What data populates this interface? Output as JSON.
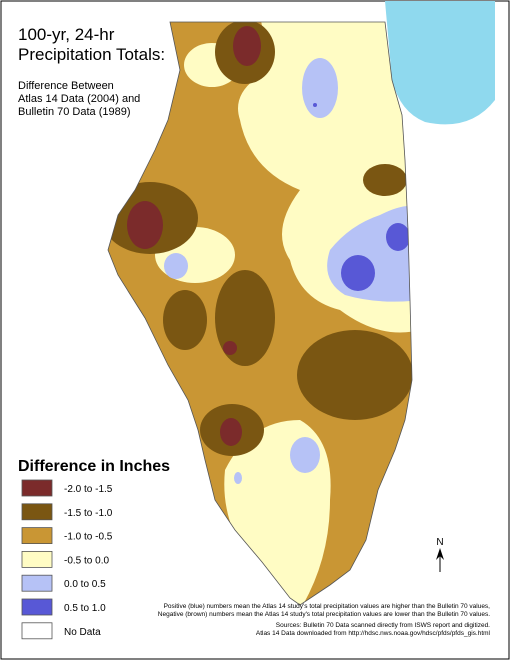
{
  "map": {
    "title": [
      "100-yr, 24-hr",
      "Precipitation Totals:"
    ],
    "subtitle": [
      "Difference Between",
      "Atlas 14 Data (2004) and",
      "Bulletin 70 Data (1989)"
    ],
    "legend": {
      "title": "Difference in Inches",
      "items": [
        {
          "label": "-2.0 to -1.5",
          "color": "#7b2b2b"
        },
        {
          "label": "-1.5 to -1.0",
          "color": "#7a5612"
        },
        {
          "label": "-1.0 to -0.5",
          "color": "#c99634"
        },
        {
          "label": "-0.5 to 0.0",
          "color": "#fffcc4"
        },
        {
          "label": "0.0 to 0.5",
          "color": "#b6c2f6"
        },
        {
          "label": "0.5 to 1.0",
          "color": "#5858d6"
        },
        {
          "label": "No Data",
          "color": "#ffffff"
        }
      ]
    },
    "north": "N",
    "notes": [
      "Positive (blue) numbers mean the Atlas 14 study's total precipitation values are higher than the Bulletin 70 values,",
      "Negative (brown) numbers mean the Atlas 14 study's total precipitation values are lower than the Bulletin 70 values."
    ],
    "sources": [
      "Sources: Bulletin 70 Data scanned directly from ISWS report and digitized.",
      "Atlas 14 Data downloaded from http://hdsc.nws.noaa.gov/hdsc/pfds/pfds_gis.html"
    ]
  }
}
